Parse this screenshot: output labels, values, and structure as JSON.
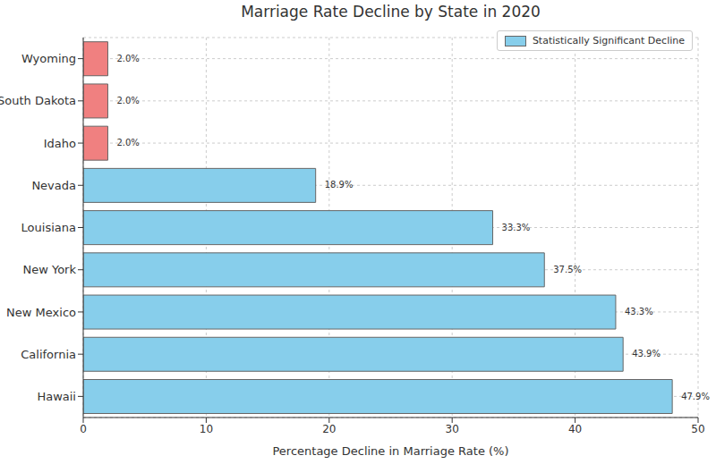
{
  "chart_data": {
    "type": "bar",
    "title": "Marriage Rate Decline by State in 2020",
    "x_label": "Percentage Decline in Marriage Rate (%)",
    "orientation": "horizontal",
    "categories": [
      "Wyoming",
      "South Dakota",
      "Idaho",
      "Nevada",
      "Louisiana",
      "New York",
      "New Mexico",
      "California",
      "Hawaii"
    ],
    "series": [
      {
        "name": "Statistically Significant Decline",
        "color": "#87ceeb",
        "colors": [
          "#f08080",
          "#f08080",
          "#f08080",
          "#87ceeb",
          "#87ceeb",
          "#87ceeb",
          "#87ceeb",
          "#87ceeb",
          "#87ceeb"
        ],
        "values": [
          2.0,
          2.0,
          2.0,
          18.9,
          33.3,
          37.5,
          43.3,
          43.9,
          47.9
        ],
        "value_labels": [
          "2.0%",
          "2.0%",
          "2.0%",
          "18.9%",
          "33.3%",
          "37.5%",
          "43.3%",
          "43.9%",
          "47.9%"
        ]
      }
    ],
    "xlim": [
      0,
      50
    ],
    "xticks": [
      0,
      10,
      20,
      30,
      40,
      50
    ],
    "grid": true,
    "legend": "upper right",
    "data_labels": true
  }
}
